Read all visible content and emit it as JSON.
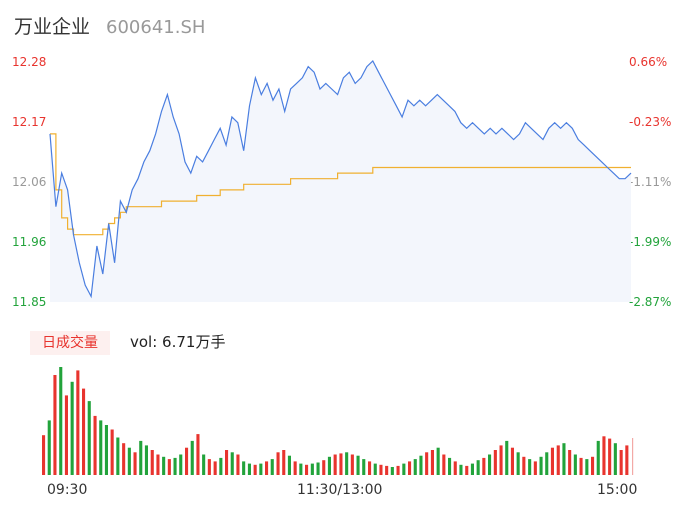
{
  "header": {
    "name": "万业企业",
    "code": "600641.SH"
  },
  "volume_badge": "日成交量",
  "volume_text": "vol: 6.71万手",
  "colors": {
    "up": "#e8342e",
    "down": "#22a33b",
    "price_line": "#4a7ee0",
    "avg_line": "#f0b030",
    "price_fill": "#f3f6fc"
  },
  "chart_data": [
    {
      "type": "line",
      "series": [
        {
          "values": [
            12.15,
            12.02,
            12.08,
            12.05,
            11.97,
            11.92,
            11.88,
            11.86,
            11.95,
            11.9,
            11.99,
            11.92,
            12.03,
            12.01,
            12.05,
            12.07,
            12.1,
            12.12,
            12.15,
            12.19,
            12.22,
            12.18,
            12.15,
            12.1,
            12.08,
            12.11,
            12.1,
            12.12,
            12.14,
            12.16,
            12.13,
            12.18,
            12.17,
            12.12,
            12.2,
            12.25,
            12.22,
            12.24,
            12.21,
            12.23,
            12.19,
            12.23,
            12.24,
            12.25,
            12.27,
            12.26,
            12.23,
            12.24,
            12.23,
            12.22,
            12.25,
            12.26,
            12.24,
            12.25,
            12.27,
            12.28,
            12.26,
            12.24,
            12.22,
            12.2,
            12.18,
            12.21,
            12.2,
            12.21,
            12.2,
            12.21,
            12.22,
            12.21,
            12.2,
            12.19,
            12.17,
            12.16,
            12.17,
            12.16,
            12.15,
            12.16,
            12.15,
            12.16,
            12.15,
            12.14,
            12.15,
            12.17,
            12.16,
            12.15,
            12.14,
            12.16,
            12.17,
            12.16,
            12.17,
            12.16,
            12.14,
            12.13,
            12.12,
            12.11,
            12.1,
            12.09,
            12.08,
            12.07,
            12.07,
            12.08
          ]
        },
        {
          "values": [
            12.15,
            12.05,
            12.0,
            11.98,
            11.97,
            11.97,
            11.97,
            11.97,
            11.97,
            11.98,
            11.99,
            12.0,
            12.01,
            12.02,
            12.02,
            12.02,
            12.02,
            12.02,
            12.02,
            12.03,
            12.03,
            12.03,
            12.03,
            12.03,
            12.03,
            12.04,
            12.04,
            12.04,
            12.04,
            12.05,
            12.05,
            12.05,
            12.05,
            12.06,
            12.06,
            12.06,
            12.06,
            12.06,
            12.06,
            12.06,
            12.06,
            12.07,
            12.07,
            12.07,
            12.07,
            12.07,
            12.07,
            12.07,
            12.07,
            12.08,
            12.08,
            12.08,
            12.08,
            12.08,
            12.08,
            12.09,
            12.09,
            12.09,
            12.09,
            12.09,
            12.09,
            12.09,
            12.09,
            12.09,
            12.09,
            12.09,
            12.09,
            12.09,
            12.09,
            12.09,
            12.09,
            12.09,
            12.09,
            12.09,
            12.09,
            12.09,
            12.09,
            12.09,
            12.09,
            12.09,
            12.09,
            12.09,
            12.09,
            12.09,
            12.09,
            12.09,
            12.09,
            12.09,
            12.09,
            12.09,
            12.09,
            12.09,
            12.09,
            12.09,
            12.09,
            12.09,
            12.09,
            12.09,
            12.09,
            12.09
          ]
        }
      ],
      "ylim": [
        11.85,
        12.28
      ],
      "y_ticks_left": [
        "12.28",
        "12.17",
        "12.06",
        "11.96",
        "11.85"
      ],
      "y_ticks_right": [
        "0.66%",
        "-0.23%",
        "-1.11%",
        "-1.99%",
        "-2.87%"
      ],
      "x_ticks": [
        "09:30",
        "11:30/13:00",
        "15:00"
      ]
    },
    {
      "type": "bar",
      "values": [
        35,
        48,
        88,
        95,
        70,
        82,
        92,
        76,
        65,
        52,
        48,
        44,
        40,
        33,
        28,
        24,
        20,
        30,
        26,
        22,
        18,
        16,
        14,
        15,
        18,
        24,
        30,
        36,
        18,
        14,
        12,
        15,
        22,
        20,
        18,
        12,
        10,
        9,
        10,
        12,
        14,
        20,
        22,
        17,
        12,
        10,
        9,
        10,
        11,
        13,
        16,
        18,
        19,
        20,
        18,
        17,
        14,
        12,
        10,
        9,
        8,
        7,
        8,
        10,
        12,
        14,
        17,
        20,
        22,
        24,
        18,
        15,
        12,
        9,
        8,
        10,
        13,
        15,
        18,
        22,
        26,
        30,
        24,
        20,
        16,
        14,
        12,
        16,
        20,
        24,
        26,
        28,
        22,
        18,
        15,
        14,
        16,
        30,
        34,
        32,
        28,
        22,
        26
      ],
      "up": [
        1,
        0,
        1,
        0,
        1,
        0,
        1,
        1,
        0,
        1,
        0,
        0,
        1,
        0,
        1,
        0,
        1,
        0,
        0,
        1,
        1,
        0,
        1,
        0,
        0,
        1,
        0,
        1,
        0,
        1,
        1,
        0,
        1,
        0,
        1,
        0,
        0,
        1,
        0,
        1,
        0,
        1,
        1,
        0,
        1,
        0,
        1,
        0,
        0,
        1,
        0,
        1,
        1,
        0,
        1,
        0,
        0,
        1,
        0,
        1,
        1,
        0,
        1,
        0,
        1,
        0,
        0,
        1,
        1,
        0,
        1,
        0,
        1,
        0,
        1,
        0,
        0,
        1,
        0,
        1,
        1,
        0,
        1,
        0,
        1,
        0,
        1,
        0,
        0,
        1,
        1,
        0,
        1,
        0,
        1,
        0,
        1,
        0,
        1,
        1,
        0,
        1,
        1
      ]
    }
  ]
}
